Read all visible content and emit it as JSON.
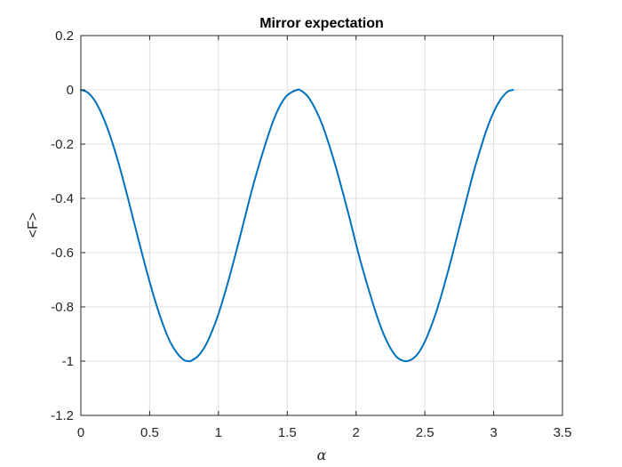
{
  "chart_data": {
    "type": "line",
    "title": "Mirror expectation",
    "xlabel": "α",
    "ylabel": "<F>",
    "xlim": [
      0,
      3.5
    ],
    "ylim": [
      -1.2,
      0.2
    ],
    "xticks": [
      0,
      0.5,
      1,
      1.5,
      2,
      2.5,
      3,
      3.5
    ],
    "xtick_labels": [
      "0",
      "0.5",
      "1",
      "1.5",
      "2",
      "2.5",
      "3",
      "3.5"
    ],
    "yticks": [
      0.2,
      0,
      -0.2,
      -0.4,
      -0.6,
      -0.8,
      -1,
      -1.2
    ],
    "ytick_labels": [
      "0.2",
      "0",
      "-0.2",
      "-0.4",
      "-0.6",
      "-0.8",
      "-1",
      "-1.2"
    ],
    "grid": true,
    "series": [
      {
        "color": "#0072bd",
        "x": [
          0,
          0.05,
          0.1,
          0.15,
          0.2,
          0.25,
          0.3,
          0.35,
          0.4,
          0.45,
          0.5,
          0.55,
          0.6,
          0.65,
          0.7,
          0.75,
          0.785,
          0.8,
          0.85,
          0.9,
          0.95,
          1.0,
          1.05,
          1.1,
          1.15,
          1.2,
          1.25,
          1.3,
          1.35,
          1.4,
          1.45,
          1.5,
          1.571,
          1.6,
          1.65,
          1.7,
          1.75,
          1.8,
          1.85,
          1.9,
          1.95,
          2.0,
          2.05,
          2.1,
          2.15,
          2.2,
          2.25,
          2.3,
          2.356,
          2.4,
          2.45,
          2.5,
          2.55,
          2.6,
          2.65,
          2.7,
          2.75,
          2.8,
          2.85,
          2.9,
          2.95,
          3.0,
          3.05,
          3.1,
          3.1416
        ],
        "y": [
          0,
          -0.01,
          -0.039,
          -0.087,
          -0.151,
          -0.229,
          -0.318,
          -0.415,
          -0.515,
          -0.614,
          -0.708,
          -0.794,
          -0.869,
          -0.93,
          -0.971,
          -0.996,
          -1.0,
          -0.999,
          -0.982,
          -0.948,
          -0.894,
          -0.826,
          -0.743,
          -0.652,
          -0.555,
          -0.454,
          -0.356,
          -0.268,
          -0.186,
          -0.112,
          -0.056,
          -0.02,
          0,
          -0.003,
          -0.025,
          -0.067,
          -0.123,
          -0.196,
          -0.279,
          -0.371,
          -0.467,
          -0.569,
          -0.664,
          -0.75,
          -0.831,
          -0.9,
          -0.952,
          -0.987,
          -1.0,
          -0.995,
          -0.972,
          -0.928,
          -0.866,
          -0.791,
          -0.703,
          -0.608,
          -0.508,
          -0.409,
          -0.311,
          -0.224,
          -0.145,
          -0.082,
          -0.036,
          -0.007,
          0
        ]
      }
    ]
  }
}
